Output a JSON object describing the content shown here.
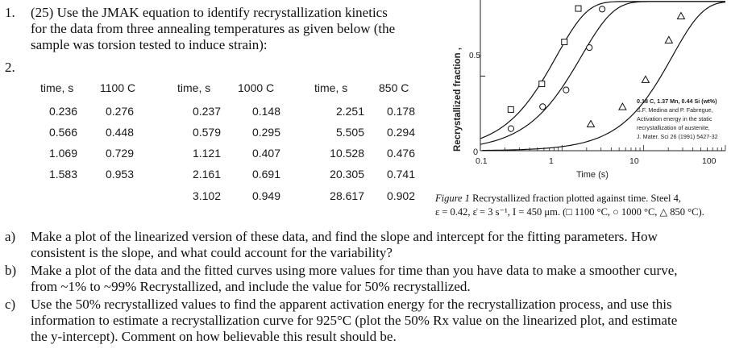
{
  "problem": {
    "number": "1.",
    "number2": "2.",
    "lines": [
      "(25) Use the JMAK equation to identify recrystallization kinetics",
      "for the data from three annealing temperatures as given below (the",
      "sample was torsion tested to induce strain):"
    ]
  },
  "table": {
    "groups": [
      {
        "time_header": "time, s",
        "temp_header": "1100 C",
        "times": [
          "0.236",
          "0.566",
          "1.069",
          "1.583"
        ],
        "fractions": [
          "0.276",
          "0.448",
          "0.729",
          "0.953"
        ]
      },
      {
        "time_header": "time, s",
        "temp_header": "1000 C",
        "times": [
          "0.237",
          "0.579",
          "1.121",
          "2.161",
          "3.102"
        ],
        "fractions": [
          "0.148",
          "0.295",
          "0.407",
          "0.691",
          "0.949"
        ]
      },
      {
        "time_header": "time, s",
        "temp_header": "850 C",
        "times": [
          "2.251",
          "5.505",
          "10.528",
          "20.305",
          "28.617"
        ],
        "fractions": [
          "0.178",
          "0.294",
          "0.476",
          "0.741",
          "0.902"
        ]
      }
    ]
  },
  "figure": {
    "ylabel": "Recrystallized fraction ,",
    "xlabel": "Time (s)",
    "y_ticks": [
      "0",
      "0.5"
    ],
    "x_ticks": [
      "0.1",
      "1",
      "10",
      "100"
    ],
    "note_lines": [
      "0.18 C, 1.37 Mn, 0.44 Si (wt%)",
      "S.F. Medina and P. Fabregue,",
      "Activation energy in the static",
      "recrystallization of austenite,",
      "J. Mater. Sci 26 (1991) 5427-32"
    ],
    "caption_line1_label": "Figure 1",
    "caption_line1_text": " Recrystallized fraction plotted against time. Steel 4,",
    "caption_line2": "ε = 0.42, ε̇ = 3 s⁻¹, I = 450 μm. (□ 1100 °C, ○ 1000 °C, △ 850 °C)."
  },
  "chart_data": {
    "type": "line",
    "xscale": "log",
    "xlabel": "Time (s)",
    "ylabel": "Recrystallized fraction ,",
    "xlim": [
      0.1,
      100
    ],
    "ylim": [
      0,
      1.0
    ],
    "series": [
      {
        "marker": "square",
        "x": [
          0.236,
          0.566,
          1.069,
          1.583
        ],
        "y": [
          0.276,
          0.448,
          0.729,
          0.953
        ]
      },
      {
        "marker": "circle",
        "x": [
          0.237,
          0.579,
          1.121,
          2.161,
          3.102
        ],
        "y": [
          0.148,
          0.295,
          0.407,
          0.691,
          0.949
        ]
      },
      {
        "marker": "triangle",
        "x": [
          2.251,
          5.505,
          10.528,
          20.305,
          28.617
        ],
        "y": [
          0.178,
          0.294,
          0.476,
          0.741,
          0.902
        ]
      }
    ]
  },
  "questions": [
    {
      "label": "a)",
      "lines": [
        "Make a plot of the linearized version of these data, and find the slope and intercept for the fitting parameters.  How",
        "consistent is the slope, and what could account for the variability?"
      ]
    },
    {
      "label": "b)",
      "lines": [
        "Make a plot of the data and the fitted curves using more values for time than you have data to make a smoother curve,",
        "from ~1% to ~99% Recrystallized, and include the value for 50% recrystallized."
      ]
    },
    {
      "label": "c)",
      "lines": [
        "Use the 50% recrystallized values to find the apparent activation energy for the recrystallization process, and use this",
        "information to estimate a recrystallization curve for 925°C (plot the 50% Rx value on the linearized plot, and estimate",
        "the y-intercept).  Comment on how believable this result should be."
      ]
    }
  ]
}
